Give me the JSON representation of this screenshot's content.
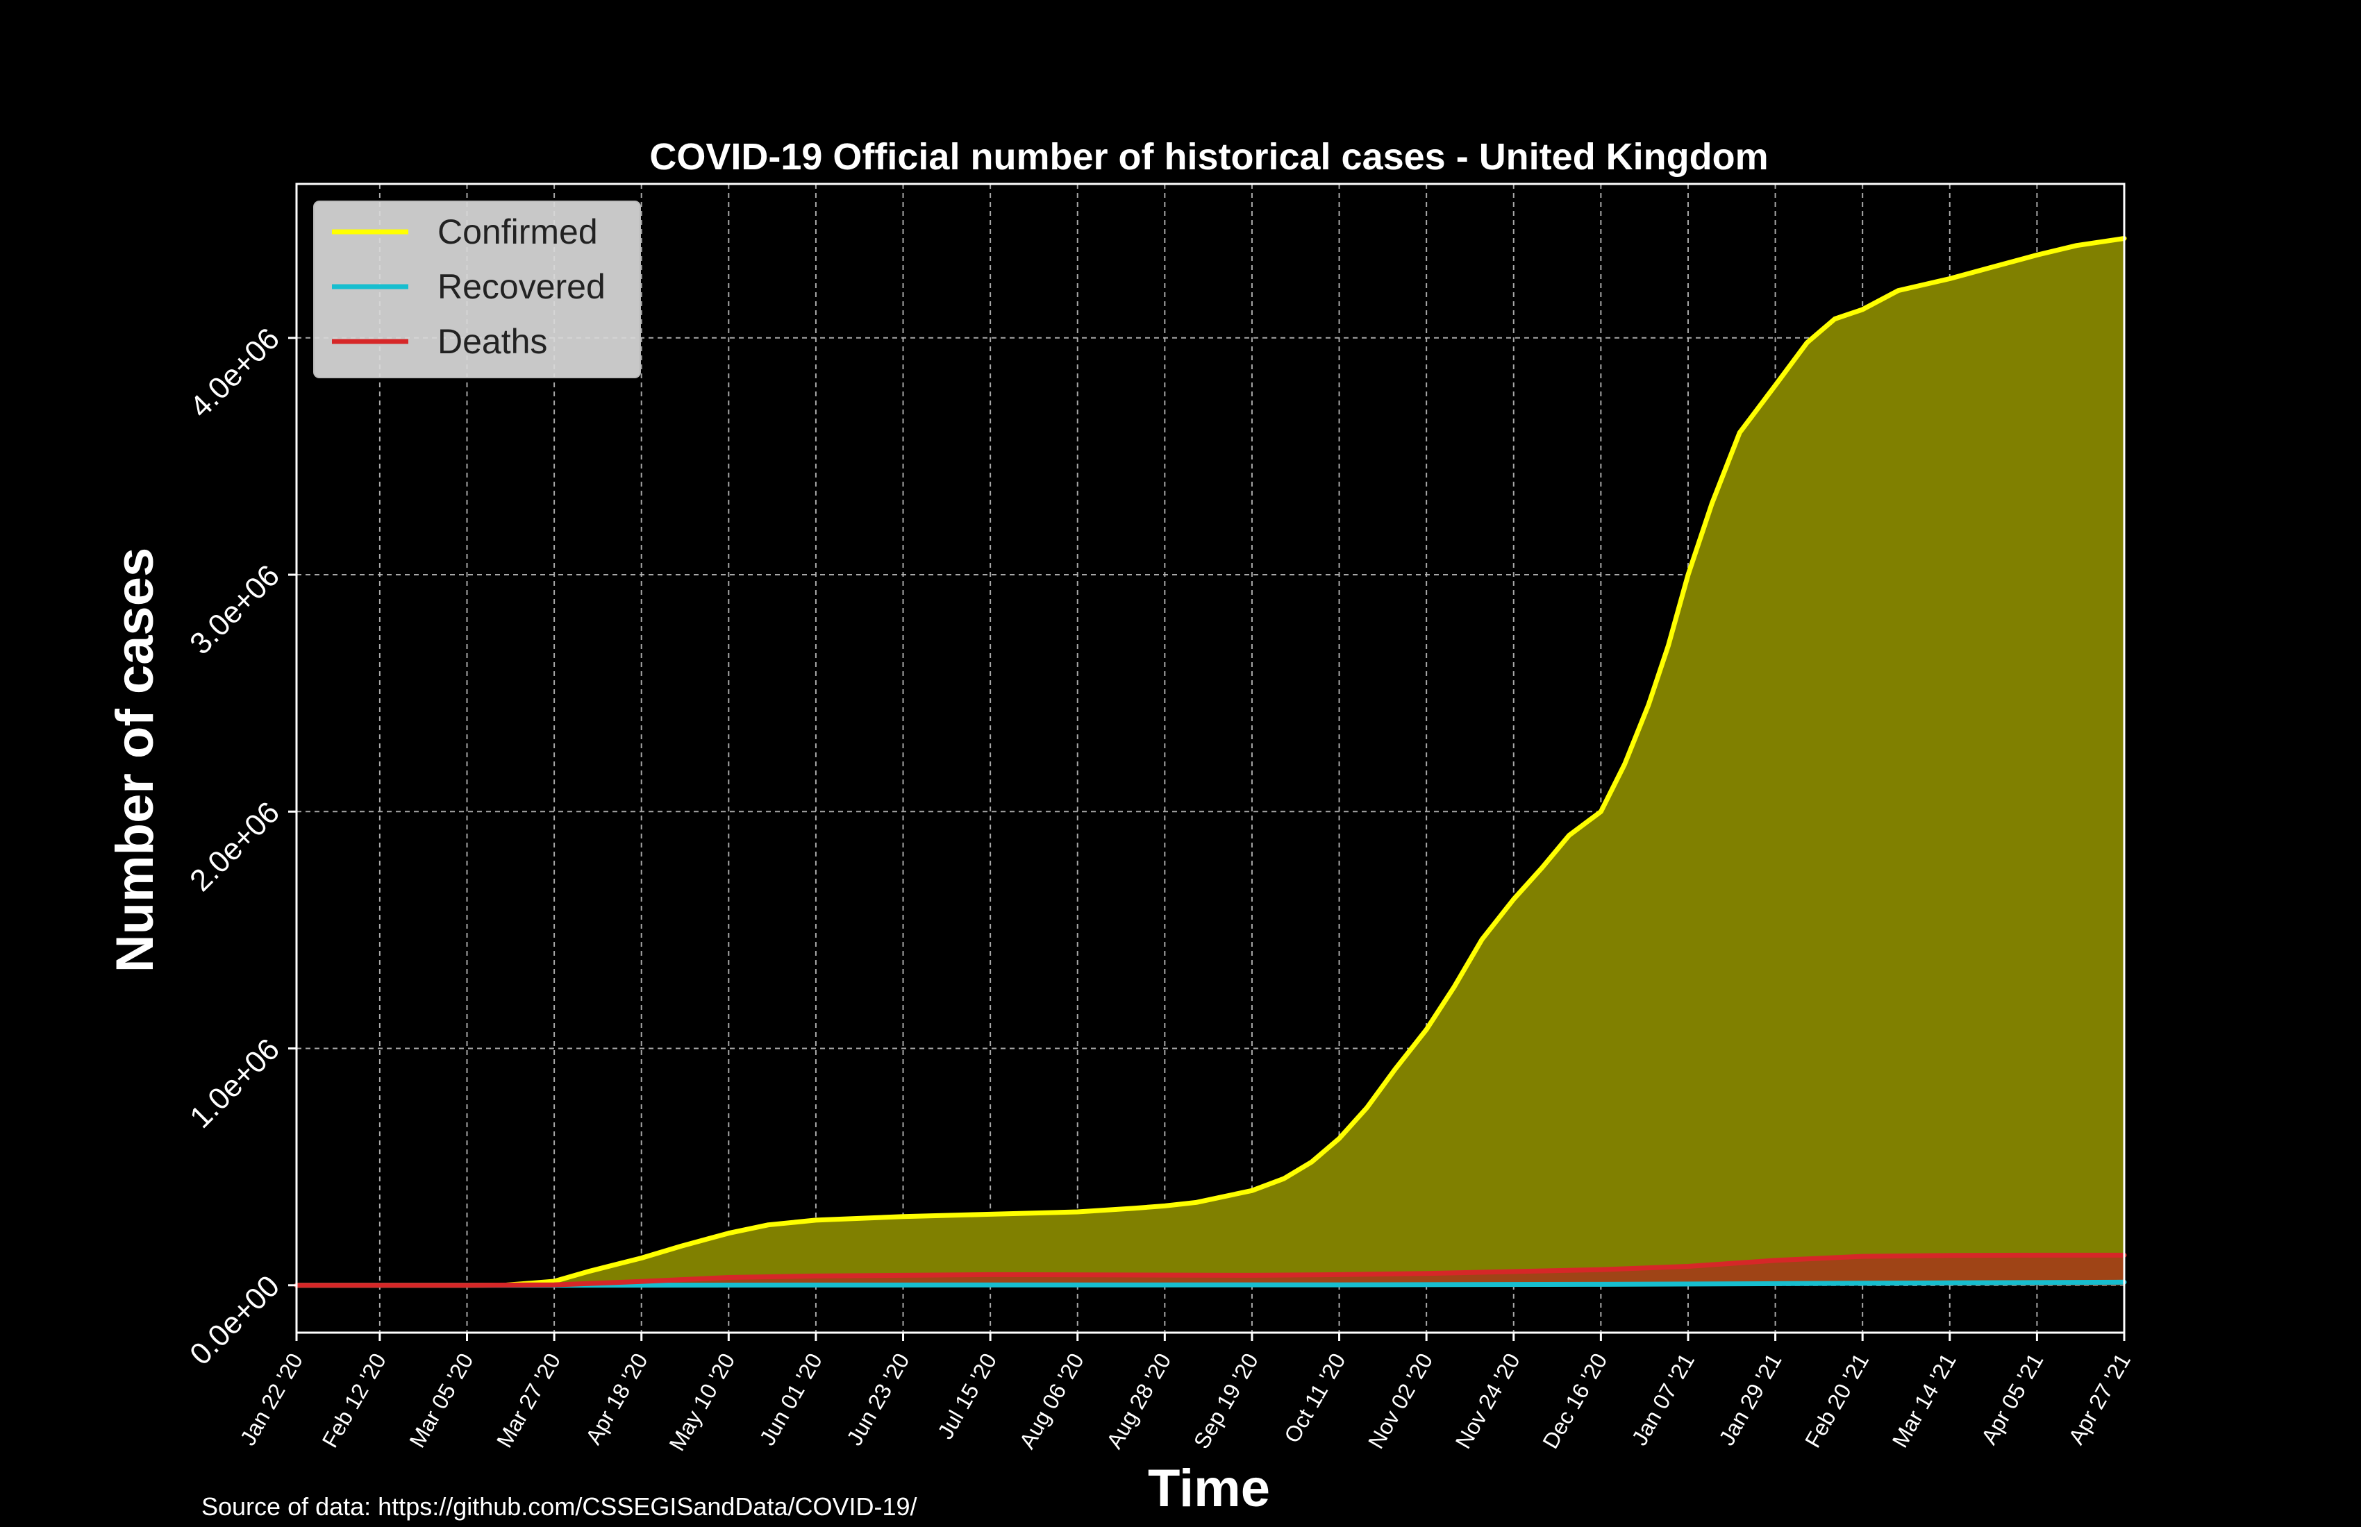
{
  "chart_data": {
    "type": "area",
    "title": "COVID-19 Official number of historical cases - United Kingdom",
    "xlabel": "Time",
    "ylabel": "Number of cases",
    "ylim": [
      -200000,
      4650000
    ],
    "yticks": [
      0,
      1000000,
      2000000,
      3000000,
      4000000
    ],
    "ytick_labels": [
      "0.0e+00",
      "1.0e+06",
      "2.0e+06",
      "3.0e+06",
      "4.0e+06"
    ],
    "xticks": [
      "2020-01-22",
      "2020-02-12",
      "2020-03-05",
      "2020-03-27",
      "2020-04-18",
      "2020-05-10",
      "2020-06-01",
      "2020-06-23",
      "2020-07-15",
      "2020-08-06",
      "2020-08-28",
      "2020-09-19",
      "2020-10-11",
      "2020-11-02",
      "2020-11-24",
      "2020-12-16",
      "2021-01-07",
      "2021-01-29",
      "2021-02-20",
      "2021-03-14",
      "2021-04-05",
      "2021-04-27"
    ],
    "xtick_labels": [
      "Jan 22 '20",
      "Feb 12 '20",
      "Mar 05 '20",
      "Mar 27 '20",
      "Apr 18 '20",
      "May 10 '20",
      "Jun 01 '20",
      "Jun 23 '20",
      "Jul 15 '20",
      "Aug 06 '20",
      "Aug 28 '20",
      "Sep 19 '20",
      "Oct 11 '20",
      "Nov 02 '20",
      "Nov 24 '20",
      "Dec 16 '20",
      "Jan 07 '21",
      "Jan 29 '21",
      "Feb 20 '21",
      "Mar 14 '21",
      "Apr 05 '21",
      "Apr 27 '21"
    ],
    "grid": true,
    "legend_position": "top-left",
    "series": [
      {
        "name": "Confirmed",
        "color": "#ffff00",
        "fill_color": "#808000",
        "x": [
          "2020-01-22",
          "2020-02-12",
          "2020-03-05",
          "2020-03-15",
          "2020-03-27",
          "2020-04-05",
          "2020-04-18",
          "2020-04-28",
          "2020-05-10",
          "2020-05-20",
          "2020-06-01",
          "2020-06-23",
          "2020-07-15",
          "2020-08-06",
          "2020-08-20",
          "2020-08-28",
          "2020-09-05",
          "2020-09-12",
          "2020-09-19",
          "2020-09-27",
          "2020-10-04",
          "2020-10-11",
          "2020-10-18",
          "2020-10-25",
          "2020-11-02",
          "2020-11-09",
          "2020-11-16",
          "2020-11-24",
          "2020-12-01",
          "2020-12-08",
          "2020-12-16",
          "2020-12-22",
          "2020-12-28",
          "2021-01-02",
          "2021-01-07",
          "2021-01-13",
          "2021-01-20",
          "2021-01-29",
          "2021-02-06",
          "2021-02-13",
          "2021-02-20",
          "2021-03-01",
          "2021-03-14",
          "2021-03-25",
          "2021-04-05",
          "2021-04-15",
          "2021-04-27"
        ],
        "y": [
          0,
          10,
          100,
          1000,
          17000,
          60000,
          115000,
          165000,
          220000,
          255000,
          275000,
          290000,
          300000,
          310000,
          325000,
          335000,
          350000,
          375000,
          400000,
          450000,
          520000,
          620000,
          750000,
          910000,
          1080000,
          1260000,
          1460000,
          1630000,
          1760000,
          1900000,
          2000000,
          2200000,
          2450000,
          2700000,
          3000000,
          3300000,
          3600000,
          3800000,
          3980000,
          4080000,
          4120000,
          4200000,
          4250000,
          4300000,
          4350000,
          4390000,
          4420000
        ]
      },
      {
        "name": "Recovered",
        "color": "#17becf",
        "fill_color": "#0e6f79",
        "x": [
          "2020-01-22",
          "2020-03-27",
          "2020-06-01",
          "2020-10-11",
          "2020-12-16",
          "2021-01-29",
          "2021-03-14",
          "2021-04-27"
        ],
        "y": [
          0,
          100,
          1000,
          2000,
          4000,
          7000,
          10000,
          13000
        ]
      },
      {
        "name": "Deaths",
        "color": "#d62728",
        "fill_color": "#a43a1a",
        "x": [
          "2020-01-22",
          "2020-03-05",
          "2020-03-27",
          "2020-04-18",
          "2020-05-10",
          "2020-06-01",
          "2020-07-15",
          "2020-09-19",
          "2020-10-11",
          "2020-11-02",
          "2020-11-24",
          "2020-12-16",
          "2021-01-07",
          "2021-01-29",
          "2021-02-20",
          "2021-03-14",
          "2021-04-05",
          "2021-04-27"
        ],
        "y": [
          0,
          0,
          2000,
          16000,
          33000,
          39000,
          45000,
          42000,
          45000,
          50000,
          58000,
          66000,
          80000,
          105000,
          122000,
          126000,
          127000,
          127000
        ]
      }
    ],
    "source": "Source of data: https://github.com/CSSEGISandData/COVID-19/"
  }
}
